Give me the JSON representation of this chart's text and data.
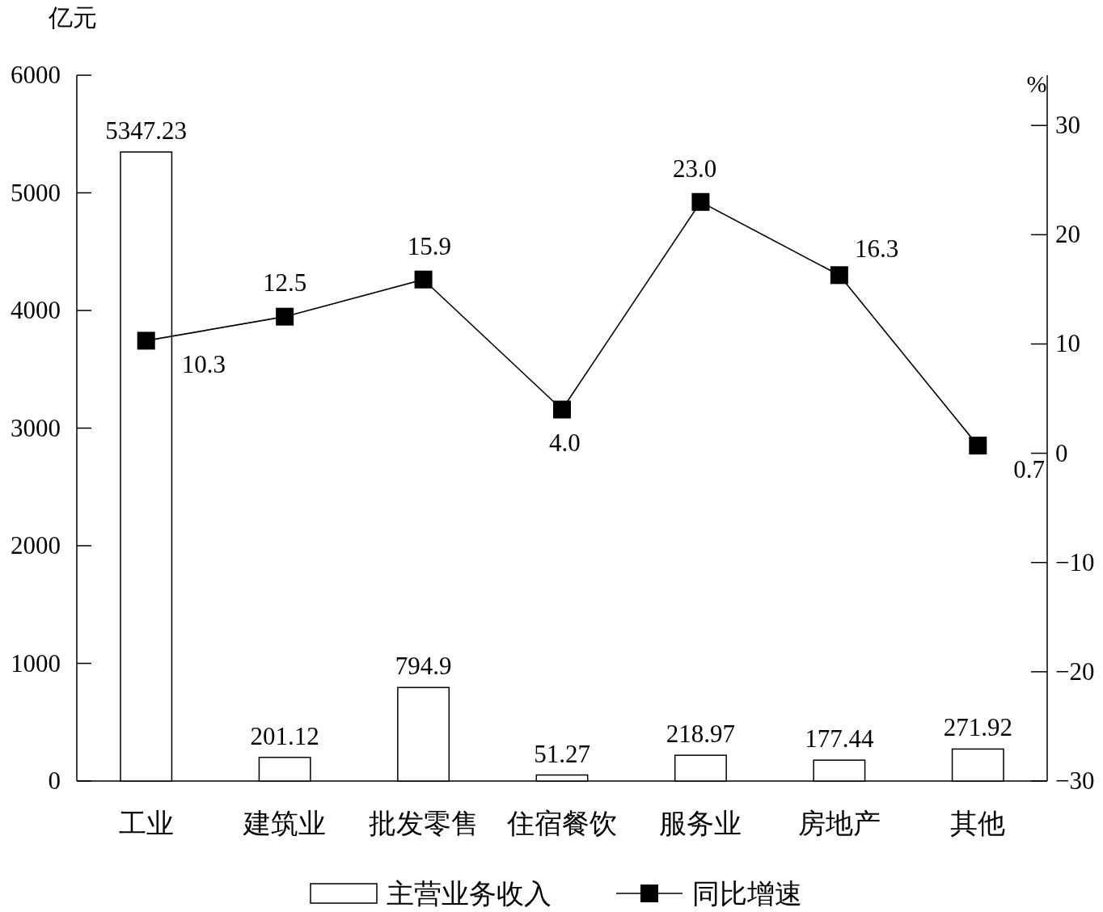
{
  "chart_data": {
    "type": "bar",
    "ylabel": "亿元",
    "y2label": "%",
    "categories": [
      "工业",
      "建筑业",
      "批发零售",
      "住宿餐饮",
      "服务业",
      "房地产",
      "其他"
    ],
    "series": [
      {
        "name": "主营业务收入",
        "color": "#ffffff",
        "values": [
          5347.23,
          201.12,
          794.9,
          51.27,
          218.97,
          177.44,
          271.92
        ],
        "value_labels": [
          "5347.23",
          "201.12",
          "794.9",
          "51.27",
          "218.97",
          "177.44",
          "271.92"
        ]
      },
      {
        "name": "同比增速",
        "type": "line",
        "axis": "y2",
        "color": "#000000",
        "marker": "square",
        "values": [
          10.3,
          12.5,
          15.9,
          4.0,
          23.0,
          16.3,
          0.7
        ],
        "value_labels": [
          "10.3",
          "12.5",
          "15.9",
          "4.0",
          "23.0",
          "16.3",
          "0.7"
        ]
      }
    ],
    "ylim": [
      0,
      6000
    ],
    "yticks": [
      0,
      1000,
      2000,
      3000,
      4000,
      5000,
      6000
    ],
    "y2lim": [
      -30,
      34.6
    ],
    "y2ticks": [
      {
        "value": -30,
        "label": "−30"
      },
      {
        "value": -20,
        "label": "−20"
      },
      {
        "value": -10,
        "label": "−10"
      },
      0,
      10,
      20,
      30
    ],
    "grid": false,
    "legend": "bottom"
  }
}
